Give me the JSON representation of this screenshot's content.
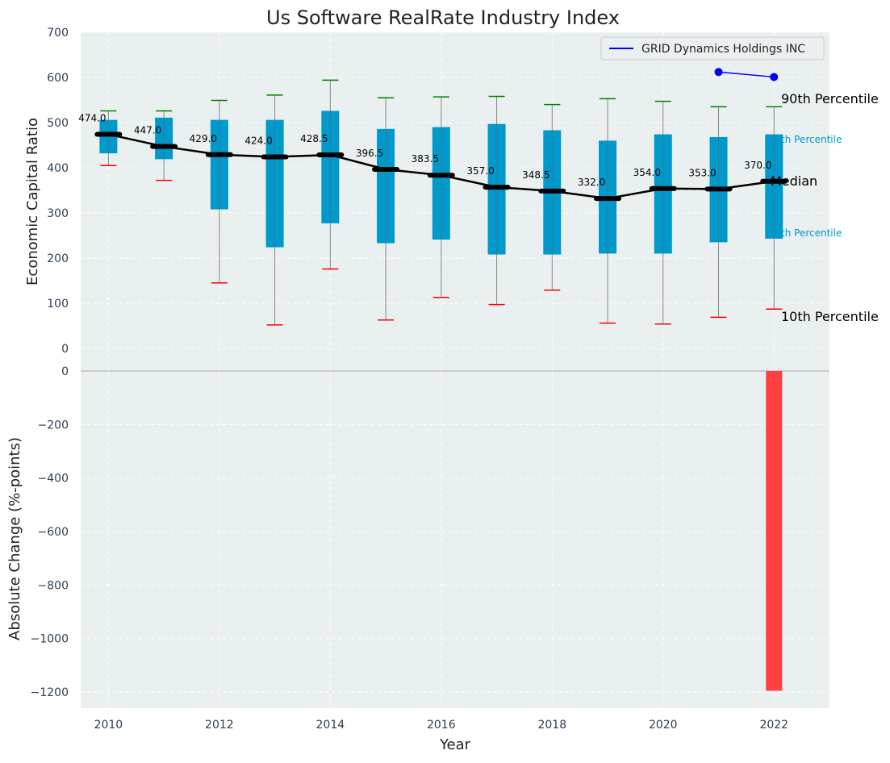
{
  "chart_data": [
    {
      "type": "box",
      "title": "Us Software RealRate Industry Index",
      "xlabel": "",
      "ylabel": "Economic Capital Ratio",
      "ylim": [
        0,
        700
      ],
      "yticks": [
        0,
        100,
        200,
        300,
        400,
        500,
        600,
        700
      ],
      "grid": true,
      "years": [
        2010,
        2011,
        2012,
        2013,
        2014,
        2015,
        2016,
        2017,
        2018,
        2019,
        2020,
        2021,
        2022
      ],
      "p10": [
        405,
        372,
        145,
        52,
        176,
        63,
        113,
        97,
        129,
        56,
        54,
        69,
        87
      ],
      "p25": [
        432,
        419,
        308,
        224,
        277,
        233,
        241,
        208,
        208,
        210,
        210,
        235,
        243
      ],
      "median": [
        474.0,
        447.0,
        429.0,
        424.0,
        428.5,
        396.5,
        383.5,
        357.0,
        348.5,
        332.0,
        354.0,
        353.0,
        370.0
      ],
      "median_labels": [
        "474.0",
        "447.0",
        "429.0",
        "424.0",
        "428.5",
        "396.5",
        "383.5",
        "357.0",
        "348.5",
        "332.0",
        "354.0",
        "353.0",
        "370.0"
      ],
      "p75": [
        506,
        511,
        506,
        506,
        526,
        486,
        490,
        497,
        483,
        460,
        474,
        468,
        474
      ],
      "p90": [
        526,
        526,
        549,
        561,
        594,
        555,
        557,
        558,
        540,
        553,
        547,
        535,
        535
      ],
      "company": {
        "name": "GRID Dynamics Holdings INC",
        "x": [
          2021,
          2022
        ],
        "y": [
          612,
          601
        ],
        "color": "#0000ff"
      },
      "legend": {
        "placement": "top-right",
        "entries": [
          "GRID Dynamics Holdings INC"
        ]
      },
      "annotations": {
        "p90": "90th Percentile",
        "p75": "th Percentile",
        "median": "Median",
        "p25": "th Percentile",
        "p10": "10th Percentile"
      },
      "colors": {
        "box": "#0099cc",
        "median_line": "#000000",
        "p90_whisker": "#008000",
        "p10_whisker": "#ff0000",
        "whisker_line": "#888888",
        "background": "#eaeff0",
        "text": "#2d3e50"
      }
    },
    {
      "type": "bar",
      "xlabel": "Year",
      "ylabel": "Absolute Change (%-points)",
      "ylim": [
        -1260,
        0
      ],
      "yticks": [
        0,
        -200,
        -400,
        -600,
        -800,
        -1000,
        -1200
      ],
      "ytick_labels": [
        "0",
        "−200",
        "−400",
        "−600",
        "−800",
        "−1000",
        "−1200"
      ],
      "xlim": [
        2009.5,
        2023
      ],
      "xticks": [
        2010,
        2012,
        2014,
        2016,
        2018,
        2020,
        2022
      ],
      "x": [
        2022
      ],
      "values": [
        -1195
      ],
      "bar_color": "#ff4040",
      "grid": true
    }
  ]
}
